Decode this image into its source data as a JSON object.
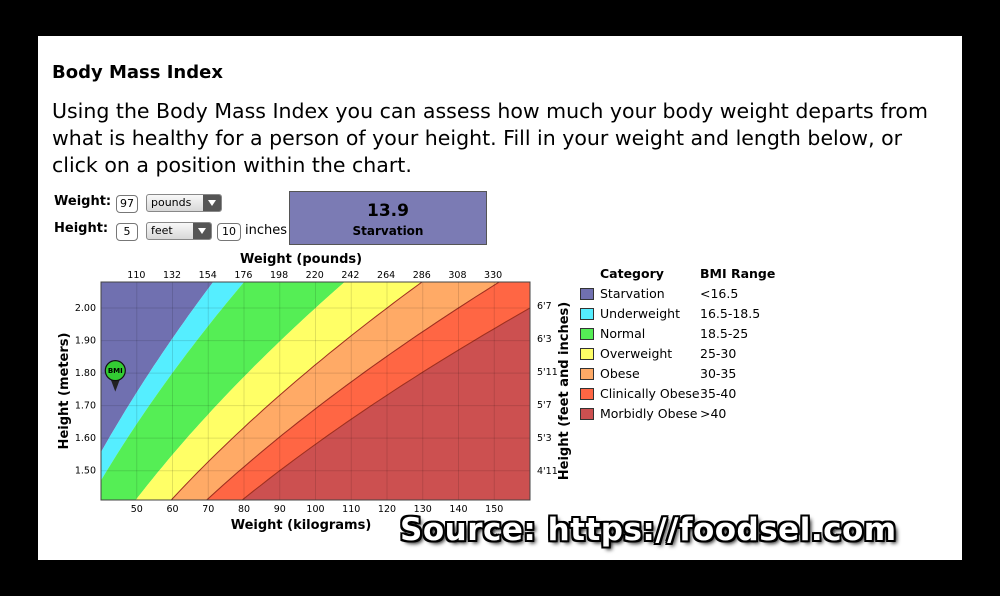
{
  "page": {
    "title": "Body Mass Index",
    "description": "Using the Body Mass Index you can assess how much your body weight departs from what is healthy for a person of your height. Fill in your weight and length below, or click on a position within the chart."
  },
  "form": {
    "weight_label": "Weight:",
    "weight_value": "97",
    "weight_unit": "pounds",
    "height_label": "Height:",
    "height_feet_value": "5",
    "height_feet_unit": "feet",
    "height_inches_value": "10",
    "height_inches_unit": "inches"
  },
  "result": {
    "bmi": "13.9",
    "category": "Starvation",
    "color": "#7b7bb4"
  },
  "chart_data": {
    "type": "heatmap",
    "top_axis_label": "Weight (pounds)",
    "top_ticks": [
      "110",
      "132",
      "154",
      "176",
      "198",
      "220",
      "242",
      "264",
      "286",
      "308",
      "330"
    ],
    "bottom_axis_label": "Weight (kilograms)",
    "bottom_ticks": [
      "50",
      "60",
      "70",
      "80",
      "90",
      "100",
      "110",
      "120",
      "130",
      "140",
      "150"
    ],
    "left_axis_label": "Height (meters)",
    "left_ticks": [
      "2.00",
      "1.90",
      "1.80",
      "1.70",
      "1.60",
      "1.50"
    ],
    "right_axis_label": "Height (feet and inches)",
    "right_ticks": [
      "6'7",
      "6'3",
      "5'11",
      "5'7",
      "5'3",
      "4'11"
    ],
    "x_range_kg": [
      40,
      160
    ],
    "y_range_m": [
      1.41,
      2.08
    ],
    "bmi_boundaries": [
      16.5,
      18.5,
      25,
      30,
      35,
      40
    ],
    "marker": {
      "label": "BMI",
      "weight_kg": 44,
      "height_m": 1.78,
      "color": "#33cc33"
    }
  },
  "legend": {
    "category_header": "Category",
    "range_header": "BMI Range",
    "items": [
      {
        "name": "Starvation",
        "range": "<16.5",
        "color": "#7070b0"
      },
      {
        "name": "Underweight",
        "range": "16.5-18.5",
        "color": "#55eeff"
      },
      {
        "name": "Normal",
        "range": "18.5-25",
        "color": "#55ee55"
      },
      {
        "name": "Overweight",
        "range": "25-30",
        "color": "#ffff66"
      },
      {
        "name": "Obese",
        "range": "30-35",
        "color": "#ffaa66"
      },
      {
        "name": "Clinically Obese",
        "range": "35-40",
        "color": "#ff6644"
      },
      {
        "name": "Morbidly Obese",
        "range": ">40",
        "color": "#cc5050"
      }
    ]
  },
  "watermark": "Source: https://foodsel.com"
}
